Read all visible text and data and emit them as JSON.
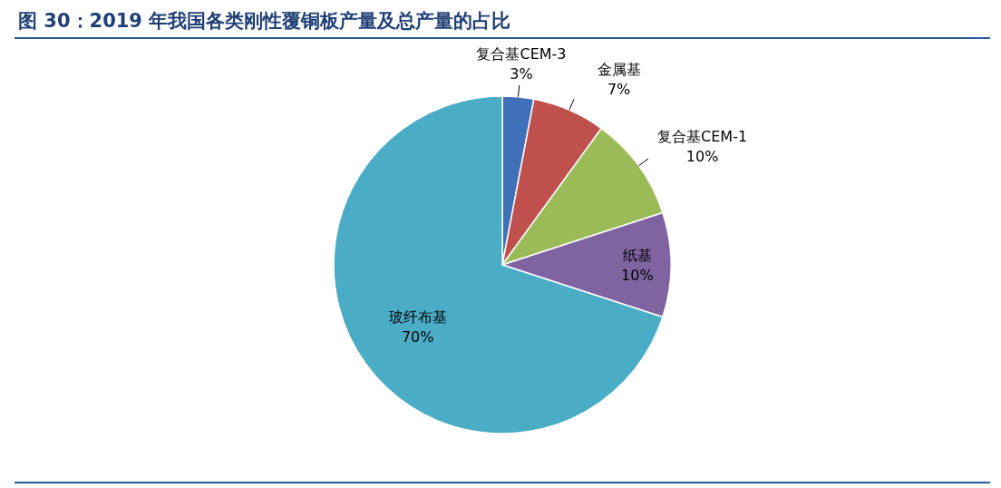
{
  "chart_data": {
    "type": "pie",
    "title": "图 30：2019 年我国各类刚性覆铜板产量及总产量的占比",
    "categories": [
      "复合基CEM-3",
      "金属基",
      "复合基CEM-1",
      "纸基",
      "玻纤布基"
    ],
    "values": [
      3,
      7,
      10,
      10,
      70
    ],
    "colors": [
      "#3f70b8",
      "#c0504d",
      "#9bbb59",
      "#8064a2",
      "#4bacc6"
    ],
    "value_labels": [
      "3%",
      "7%",
      "10%",
      "10%",
      "70%"
    ],
    "legend": false
  }
}
